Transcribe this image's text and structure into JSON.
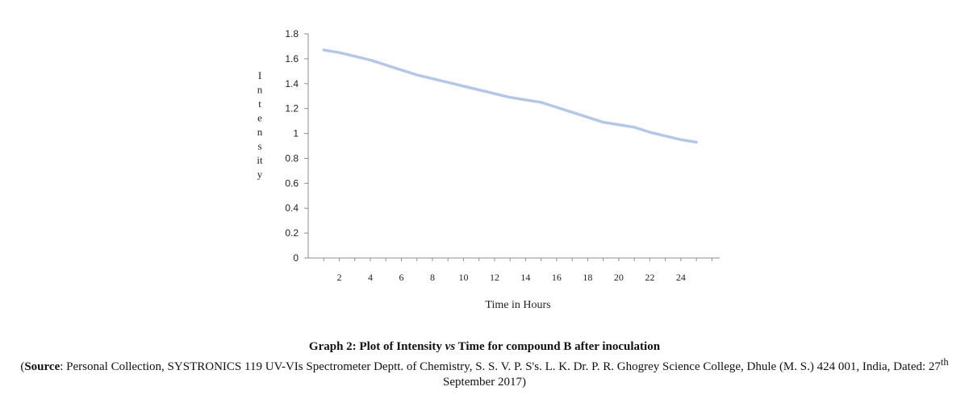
{
  "caption": {
    "title_before": "Graph 2: Plot of Intensity ",
    "title_italic": "vs",
    "title_after": " Time for compound B after inoculation",
    "source_label": "Source",
    "source_before": "Personal Collection, SYSTRONICS 119 UV-VIs Spectrometer Deptt. of Chemistry, S. S. V. P. S's. L. K. Dr. P. R. Ghogrey Science College, Dhule (M. S.) 424 001, India, Dated: 27",
    "source_sup": "th",
    "source_after": " September 2017)"
  },
  "chart_data": {
    "type": "line",
    "title": "",
    "xlabel": "Time in Hours",
    "ylabel": "Intensity",
    "ylabel_lines": [
      "I",
      "n",
      "t",
      "e",
      "n",
      "s",
      "it",
      "y"
    ],
    "x_ticks": [
      2,
      4,
      6,
      8,
      10,
      12,
      14,
      16,
      18,
      20,
      22,
      24
    ],
    "y_ticks": [
      "0",
      "0.2",
      "0.4",
      "0.6",
      "0.8",
      "1",
      "1.2",
      "1.4",
      "1.6",
      "1.8"
    ],
    "ylim": [
      0,
      1.8
    ],
    "series": [
      {
        "color": "#b5c7e6",
        "x": [
          1,
          2,
          3,
          4,
          5,
          6,
          7,
          8,
          9,
          10,
          11,
          12,
          13,
          14,
          15,
          16,
          17,
          18,
          19,
          20,
          21,
          22,
          23,
          24,
          25
        ],
        "y": [
          1.67,
          1.65,
          1.62,
          1.59,
          1.55,
          1.51,
          1.47,
          1.44,
          1.41,
          1.38,
          1.35,
          1.32,
          1.29,
          1.27,
          1.25,
          1.21,
          1.17,
          1.13,
          1.09,
          1.07,
          1.05,
          1.01,
          0.98,
          0.95,
          0.93
        ]
      }
    ],
    "grid": false,
    "legend": "none"
  }
}
